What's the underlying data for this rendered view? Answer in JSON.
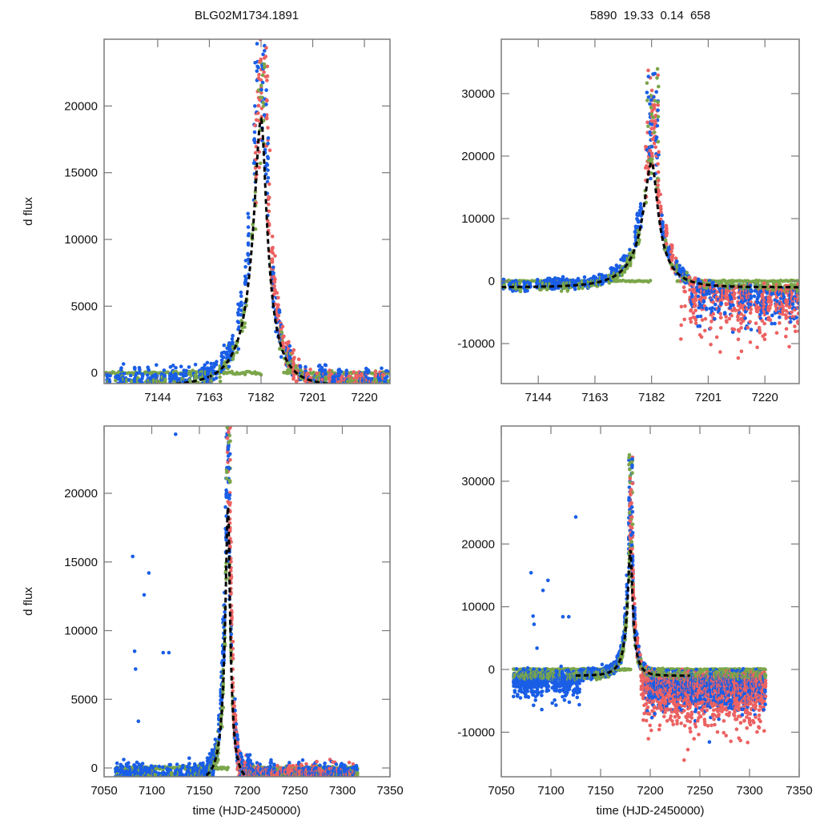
{
  "chart_data": [
    {
      "id": "top-left",
      "type": "scatter",
      "title": "BLG02M1734.1891",
      "xlabel": "",
      "ylabel": "d flux",
      "xlim": [
        7124.3,
        7229.4
      ],
      "ylim": [
        -800,
        25000
      ],
      "xticks": [
        7144,
        7163,
        7182,
        7201,
        7220
      ],
      "yticks": [
        0,
        5000,
        10000,
        15000,
        20000
      ],
      "grid": false,
      "model": {
        "t0": 7182,
        "peak": 19000,
        "baseline": -1000,
        "tE_rise": 14,
        "tE_fall": 11,
        "style": "dashed",
        "color": "#000000"
      },
      "series": [
        {
          "name": "blue",
          "color": "#1a5ee6"
        },
        {
          "name": "green",
          "color": "#7ba64a"
        },
        {
          "name": "red",
          "color": "#ec6262"
        }
      ]
    },
    {
      "id": "top-right",
      "type": "scatter",
      "title": "5890  19.33  0.14  658",
      "xlabel": "",
      "ylabel": "",
      "xlim": [
        7131.6,
        7231.5
      ],
      "ylim": [
        -16400,
        38700
      ],
      "xticks": [
        7144,
        7163,
        7182,
        7201,
        7220
      ],
      "yticks": [
        -10000,
        0,
        10000,
        20000,
        30000
      ],
      "grid": false,
      "model": {
        "t0": 7182,
        "peak": 19000,
        "baseline": -1000,
        "tE_rise": 14,
        "tE_fall": 11,
        "style": "dashed",
        "color": "#000000"
      },
      "series": [
        {
          "name": "blue",
          "color": "#1a5ee6"
        },
        {
          "name": "green",
          "color": "#7ba64a"
        },
        {
          "name": "red",
          "color": "#ec6262"
        }
      ]
    },
    {
      "id": "bottom-left",
      "type": "scatter",
      "title": "",
      "xlabel": "time (HJD-2450000)",
      "ylabel": "d flux",
      "xlim": [
        7050,
        7350
      ],
      "ylim": [
        -640,
        24900
      ],
      "xticks": [
        7050,
        7100,
        7150,
        7200,
        7250,
        7300,
        7350
      ],
      "yticks": [
        0,
        5000,
        10000,
        15000,
        20000
      ],
      "grid": false,
      "model": {
        "t0": 7180,
        "peak": 19000,
        "baseline": -1000,
        "tE_rise": 14,
        "tE_fall": 11,
        "style": "dashed",
        "color": "#000000"
      },
      "series": [
        {
          "name": "blue",
          "color": "#1a5ee6"
        },
        {
          "name": "green",
          "color": "#7ba64a"
        },
        {
          "name": "red",
          "color": "#ec6262"
        }
      ]
    },
    {
      "id": "bottom-right",
      "type": "scatter",
      "title": "",
      "xlabel": "time (HJD-2450000)",
      "ylabel": "",
      "xlim": [
        7050,
        7350
      ],
      "ylim": [
        -17100,
        38800
      ],
      "xticks": [
        7050,
        7100,
        7150,
        7200,
        7250,
        7300,
        7350
      ],
      "yticks": [
        -10000,
        0,
        10000,
        20000,
        30000
      ],
      "grid": false,
      "model": {
        "t0": 7180,
        "peak": 19000,
        "baseline": -1000,
        "tE_rise": 14,
        "tE_fall": 11,
        "style": "dashed",
        "color": "#000000"
      },
      "series": [
        {
          "name": "blue",
          "color": "#1a5ee6"
        },
        {
          "name": "green",
          "color": "#7ba64a"
        },
        {
          "name": "red",
          "color": "#ec6262"
        }
      ]
    }
  ]
}
